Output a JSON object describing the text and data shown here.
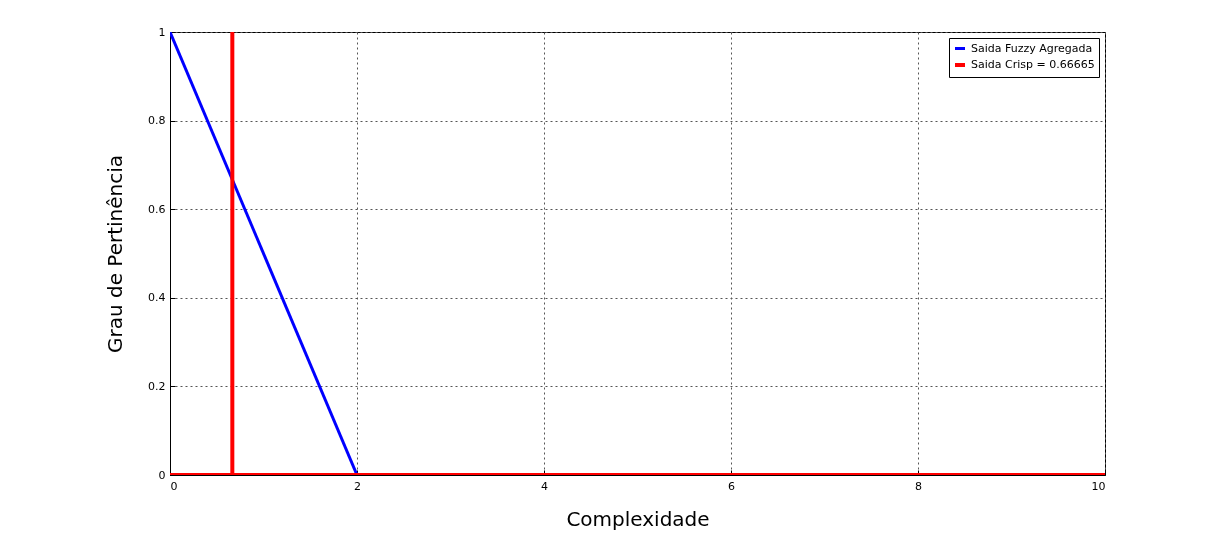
{
  "chart_data": {
    "type": "line",
    "xlabel": "Complexidade",
    "ylabel": "Grau de Pertinência",
    "xlim": [
      0,
      10
    ],
    "ylim": [
      0,
      1
    ],
    "xticks": [
      0,
      2,
      4,
      6,
      8,
      10
    ],
    "yticks": [
      0,
      0.2,
      0.4,
      0.6,
      0.8,
      1
    ],
    "grid": true,
    "legend": "top right",
    "series": [
      {
        "name": "Saida Fuzzy Agregada",
        "color": "#0000ff",
        "x": [
          0,
          2
        ],
        "values": [
          1,
          0
        ]
      },
      {
        "name": "Saida Crisp = 0.66665",
        "color": "#ff0000",
        "x": [
          0,
          0.66665,
          0.66665,
          0.66665,
          10
        ],
        "values": [
          0,
          0,
          1,
          0,
          0
        ]
      }
    ]
  }
}
